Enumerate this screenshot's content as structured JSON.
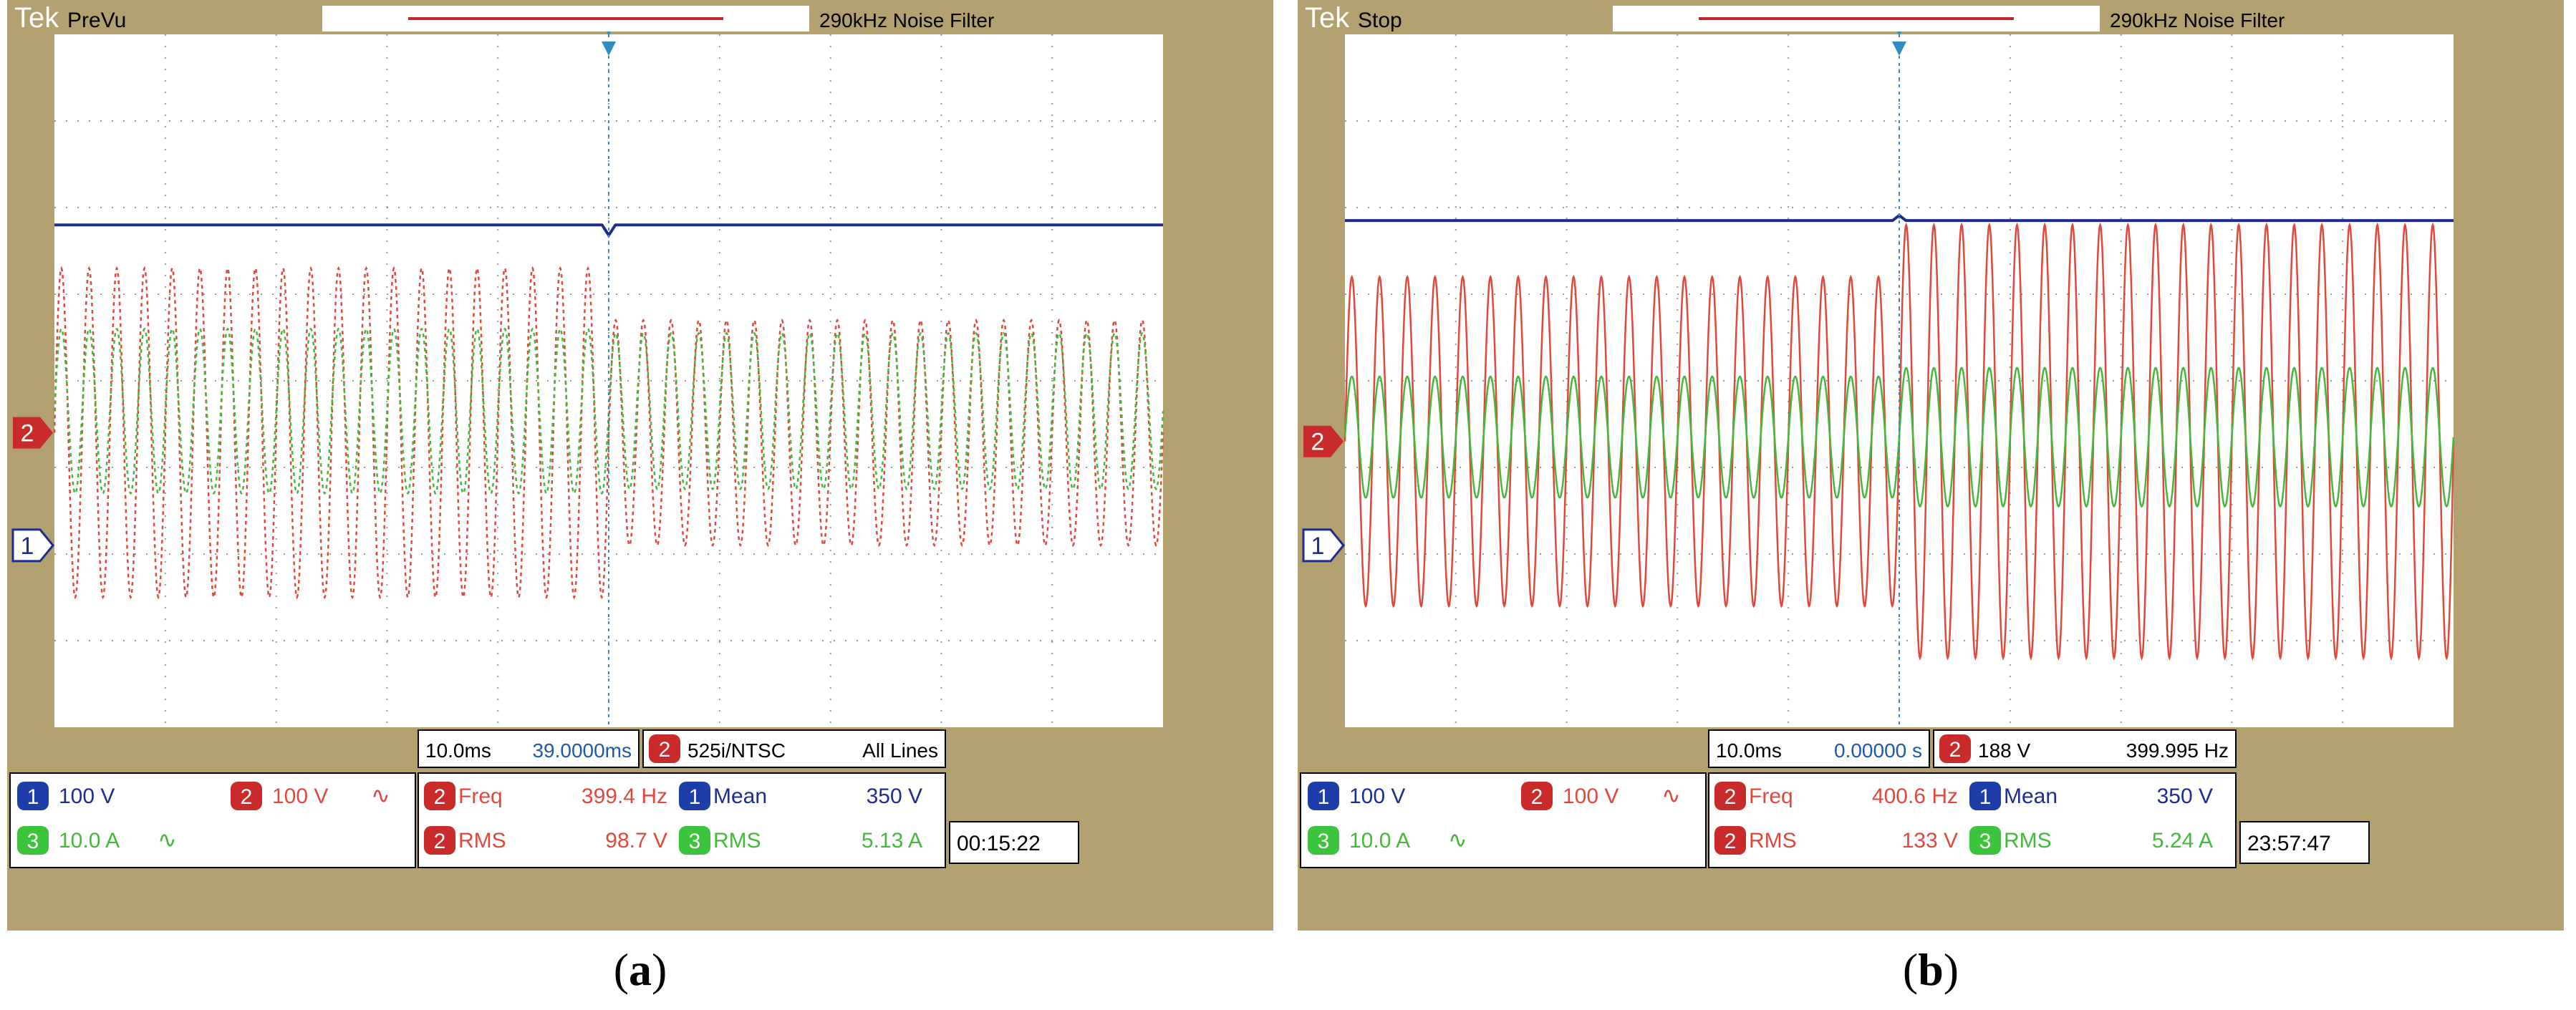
{
  "colors": {
    "bezel": "#b3a06f",
    "screen_bg": "#ffffff",
    "grid": "#9a9a9a",
    "ch1": "#1e2c8f",
    "ch2": "#e0483c",
    "ch3": "#44b83a",
    "marker": "#2f8dc4",
    "badge_blue": "#1d3ea8",
    "badge_red": "#c92a2a",
    "badge_green": "#3cc43c"
  },
  "panels": [
    {
      "caption_letter": "a",
      "header": {
        "brand": "Tek",
        "status": "PreVu",
        "filter": "290kHz  Noise Filter"
      },
      "timebase": {
        "scale": "10.0ms",
        "position": "39.0000ms"
      },
      "trigger": {
        "ch": "2",
        "mode": "525i/NTSC",
        "lines": "All Lines"
      },
      "channels": [
        {
          "n": "1",
          "scale": "100 V",
          "coupling": ""
        },
        {
          "n": "2",
          "scale": "100 V",
          "coupling": "∿"
        },
        {
          "n": "3",
          "scale": "10.0 A",
          "coupling": "∿"
        }
      ],
      "measurements": [
        {
          "ch": "2",
          "label": "Freq",
          "value": "399.4 Hz"
        },
        {
          "ch": "2",
          "label": "RMS",
          "value": "98.7 V"
        },
        {
          "ch": "1",
          "label": "Mean",
          "value": "350 V"
        },
        {
          "ch": "3",
          "label": "RMS",
          "value": "5.13 A"
        }
      ],
      "clock": "00:15:22"
    },
    {
      "caption_letter": "b",
      "header": {
        "brand": "Tek",
        "status": "Stop",
        "filter": "290kHz  Noise Filter"
      },
      "timebase": {
        "scale": "10.0ms",
        "position": "0.00000 s"
      },
      "trigger": {
        "ch": "2",
        "mode": "188 V",
        "lines": "399.995 Hz"
      },
      "channels": [
        {
          "n": "1",
          "scale": "100 V",
          "coupling": ""
        },
        {
          "n": "2",
          "scale": "100 V",
          "coupling": "∿"
        },
        {
          "n": "3",
          "scale": "10.0 A",
          "coupling": "∿"
        }
      ],
      "measurements": [
        {
          "ch": "2",
          "label": "Freq",
          "value": "400.6 Hz"
        },
        {
          "ch": "2",
          "label": "RMS",
          "value": "133 V"
        },
        {
          "ch": "1",
          "label": "Mean",
          "value": "350 V"
        },
        {
          "ch": "3",
          "label": "RMS",
          "value": "5.24 A"
        }
      ],
      "clock": "23:57:47"
    }
  ],
  "chart_data": [
    {
      "type": "line",
      "x_unit": "div",
      "y_unit": "div",
      "xlim": [
        0,
        10
      ],
      "ylim": [
        -4,
        4
      ],
      "grid": true,
      "series": [
        {
          "channel": "1",
          "shape": "dc",
          "level_div": 1.8,
          "dip_at_div": 5.0,
          "dip_depth_div": 0.12,
          "style": "solid"
        },
        {
          "channel": "2",
          "shape": "sine",
          "cycles_per_div": 4.0,
          "offset_div": -0.6,
          "segments": [
            {
              "x0": 0,
              "x1": 5,
              "amplitude_div": 1.9
            },
            {
              "x0": 5,
              "x1": 10,
              "amplitude_div": 1.3
            }
          ],
          "style": "dotted"
        },
        {
          "channel": "3",
          "shape": "sine",
          "cycles_per_div": 4.0,
          "offset_div": -0.35,
          "segments": [
            {
              "x0": 0,
              "x1": 5,
              "amplitude_div": 0.95
            },
            {
              "x0": 5,
              "x1": 10,
              "amplitude_div": 0.9
            }
          ],
          "style": "dotted"
        }
      ]
    },
    {
      "type": "line",
      "x_unit": "div",
      "y_unit": "div",
      "xlim": [
        0,
        10
      ],
      "ylim": [
        -4,
        4
      ],
      "grid": true,
      "series": [
        {
          "channel": "1",
          "shape": "dc",
          "level_div": 1.85,
          "bump_at_div": 5.0,
          "bump_height_div": 0.06,
          "style": "solid"
        },
        {
          "channel": "2",
          "shape": "sine",
          "cycles_per_div": 4.0,
          "offset_div": -0.7,
          "segments": [
            {
              "x0": 0,
              "x1": 5,
              "amplitude_div": 1.9
            },
            {
              "x0": 5,
              "x1": 10,
              "amplitude_div": 2.5
            }
          ],
          "style": "solid"
        },
        {
          "channel": "3",
          "shape": "sine",
          "cycles_per_div": 4.0,
          "offset_div": -0.65,
          "segments": [
            {
              "x0": 0,
              "x1": 5,
              "amplitude_div": 0.7
            },
            {
              "x0": 5,
              "x1": 10,
              "amplitude_div": 0.8
            }
          ],
          "style": "solid"
        }
      ]
    }
  ]
}
